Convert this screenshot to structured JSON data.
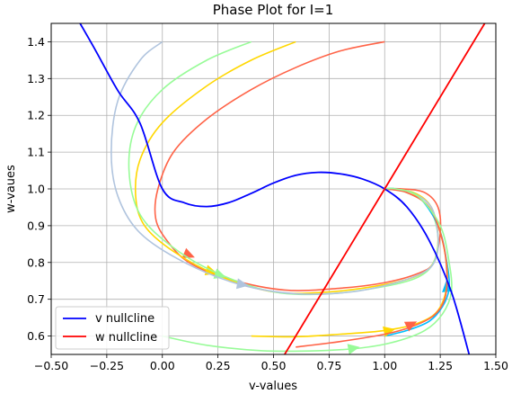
{
  "chart_data": {
    "type": "line",
    "title": "Phase Plot for I=1",
    "xlabel": "v-values",
    "ylabel": "w-vaues",
    "xlim": [
      -0.5,
      1.5
    ],
    "ylim": [
      0.55,
      1.45
    ],
    "xticks": [
      "−0.50",
      "−0.25",
      "0.00",
      "0.25",
      "0.50",
      "0.75",
      "1.00",
      "1.25",
      "1.50"
    ],
    "yticks": [
      "0.6",
      "0.7",
      "0.8",
      "0.9",
      "1.0",
      "1.1",
      "1.2",
      "1.3",
      "1.4"
    ],
    "grid": true,
    "legend_position": "lower-left",
    "series": [
      {
        "name": "v nullcline",
        "color": "#0000ff",
        "x": [
          -0.37,
          -0.3,
          -0.2,
          -0.1,
          0.0,
          0.1,
          0.2,
          0.3,
          0.4,
          0.5,
          0.6,
          0.7,
          0.8,
          0.9,
          1.0,
          1.1,
          1.2,
          1.3,
          1.38
        ],
        "y": [
          1.45,
          1.376,
          1.267,
          1.178,
          1.0,
          0.962,
          0.952,
          0.963,
          0.988,
          1.016,
          1.037,
          1.045,
          1.041,
          1.027,
          1.0,
          0.951,
          0.86,
          0.72,
          0.55
        ]
      },
      {
        "name": "w nullcline",
        "color": "#ff0000",
        "x": [
          0.55,
          1.0,
          1.45
        ],
        "y": [
          0.55,
          1.0,
          1.45
        ]
      }
    ],
    "trajectories": [
      {
        "color": "#ff6347",
        "x": [
          1.0,
          0.8,
          0.6,
          0.4,
          0.2,
          0.05,
          -0.02,
          -0.03,
          0.02,
          0.12,
          0.3,
          0.55,
          0.8,
          1.0,
          1.15,
          1.22,
          1.25,
          1.24,
          1.18,
          1.08,
          1.0
        ],
        "y": [
          1.4,
          1.375,
          1.33,
          1.27,
          1.19,
          1.1,
          1.0,
          0.92,
          0.86,
          0.8,
          0.755,
          0.725,
          0.73,
          0.745,
          0.77,
          0.8,
          0.88,
          0.95,
          0.99,
          1.0,
          1.0
        ],
        "arrow": [
          0.12,
          0.82
        ]
      },
      {
        "color": "#ffd700",
        "x": [
          0.6,
          0.4,
          0.2,
          0.0,
          -0.1,
          -0.12,
          -0.08,
          0.05,
          0.25,
          0.5,
          0.75,
          1.0,
          1.15,
          1.22,
          1.24,
          1.21,
          1.13,
          1.0
        ],
        "y": [
          1.4,
          1.35,
          1.28,
          1.18,
          1.08,
          0.98,
          0.9,
          0.83,
          0.765,
          0.72,
          0.72,
          0.74,
          0.765,
          0.8,
          0.87,
          0.95,
          0.99,
          1.0
        ],
        "arrow": [
          0.22,
          0.775
        ]
      },
      {
        "color": "#98fb98",
        "x": [
          0.4,
          0.2,
          0.0,
          -0.12,
          -0.15,
          -0.1,
          0.05,
          0.25,
          0.5,
          0.75,
          1.0,
          1.15,
          1.22,
          1.24,
          1.2,
          1.1,
          1.0
        ],
        "y": [
          1.4,
          1.35,
          1.27,
          1.17,
          1.05,
          0.93,
          0.84,
          0.77,
          0.72,
          0.715,
          0.735,
          0.76,
          0.8,
          0.87,
          0.95,
          0.99,
          1.0
        ],
        "arrow": [
          0.26,
          0.765
        ]
      },
      {
        "color": "#b0c4de",
        "x": [
          0.0,
          -0.1,
          -0.2,
          -0.23,
          -0.2,
          -0.1,
          0.1,
          0.35,
          0.6,
          0.85,
          1.05,
          1.18,
          1.23,
          1.24,
          1.21,
          1.12,
          1.0
        ],
        "y": [
          1.4,
          1.35,
          1.24,
          1.1,
          0.98,
          0.88,
          0.8,
          0.74,
          0.715,
          0.72,
          0.745,
          0.775,
          0.81,
          0.87,
          0.95,
          0.99,
          1.0
        ],
        "arrow": [
          0.36,
          0.74
        ]
      },
      {
        "color": "#00bfff",
        "x": [
          1.0,
          1.1,
          1.2,
          1.26,
          1.29,
          1.28,
          1.24,
          1.15,
          1.05,
          1.0
        ],
        "y": [
          0.6,
          0.615,
          0.64,
          0.68,
          0.73,
          0.8,
          0.9,
          0.98,
          1.0,
          1.0
        ],
        "arrow": [
          1.28,
          0.735
        ]
      },
      {
        "color": "#ffd700",
        "x": [
          0.4,
          0.6,
          0.8,
          1.0,
          1.15,
          1.24,
          1.28,
          1.27,
          1.22,
          1.12,
          1.0
        ],
        "y": [
          0.6,
          0.598,
          0.605,
          0.615,
          0.635,
          0.67,
          0.74,
          0.83,
          0.93,
          0.99,
          1.0
        ],
        "arrow": [
          1.02,
          0.615
        ]
      },
      {
        "color": "#ff6347",
        "x": [
          0.6,
          0.8,
          1.0,
          1.12,
          1.22,
          1.27,
          1.28,
          1.26,
          1.2,
          1.1,
          1.0
        ],
        "y": [
          0.57,
          0.585,
          0.605,
          0.625,
          0.655,
          0.7,
          0.77,
          0.86,
          0.95,
          0.99,
          1.0
        ],
        "arrow": [
          1.12,
          0.632
        ]
      },
      {
        "color": "#98fb98",
        "x": [
          0.0,
          0.2,
          0.45,
          0.7,
          0.9,
          1.05,
          1.18,
          1.26,
          1.3,
          1.29,
          1.25,
          1.15,
          1.05,
          1.0
        ],
        "y": [
          0.6,
          0.575,
          0.56,
          0.56,
          0.568,
          0.585,
          0.615,
          0.66,
          0.72,
          0.8,
          0.9,
          0.98,
          1.0,
          1.0
        ],
        "arrow": [
          0.86,
          0.567
        ]
      }
    ]
  }
}
